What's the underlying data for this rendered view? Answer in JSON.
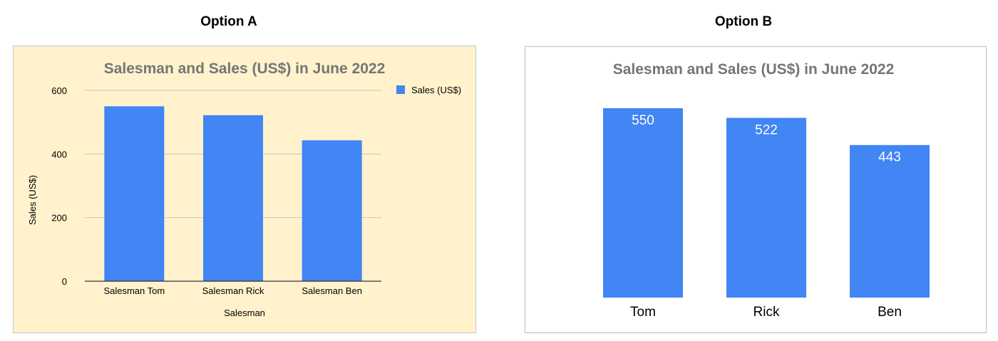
{
  "headings": {
    "option_a": "Option A",
    "option_b": "Option B"
  },
  "chart_data": [
    {
      "type": "bar",
      "title": "Salesman and Sales (US$) in June 2022",
      "categories": [
        "Salesman Tom",
        "Salesman Rick",
        "Salesman Ben"
      ],
      "series": [
        {
          "name": "Sales (US$)",
          "values": [
            550,
            522,
            443
          ]
        }
      ],
      "xlabel": "Salesman",
      "ylabel": "Sales (US$)",
      "ylim": [
        0,
        600
      ],
      "yticks": [
        0,
        200,
        400,
        600
      ],
      "grid": true,
      "legend": "top-right",
      "background": "#fff2cc",
      "bar_color": "#4285f4"
    },
    {
      "type": "bar",
      "title": "Salesman and Sales (US$) in June 2022",
      "categories": [
        "Tom",
        "Rick",
        "Ben"
      ],
      "values": [
        550,
        522,
        443
      ],
      "data_labels": [
        "550",
        "522",
        "443"
      ],
      "ylim": [
        0,
        600
      ],
      "grid": false,
      "legend": "none",
      "background": "#ffffff",
      "bar_color": "#4285f4"
    }
  ]
}
